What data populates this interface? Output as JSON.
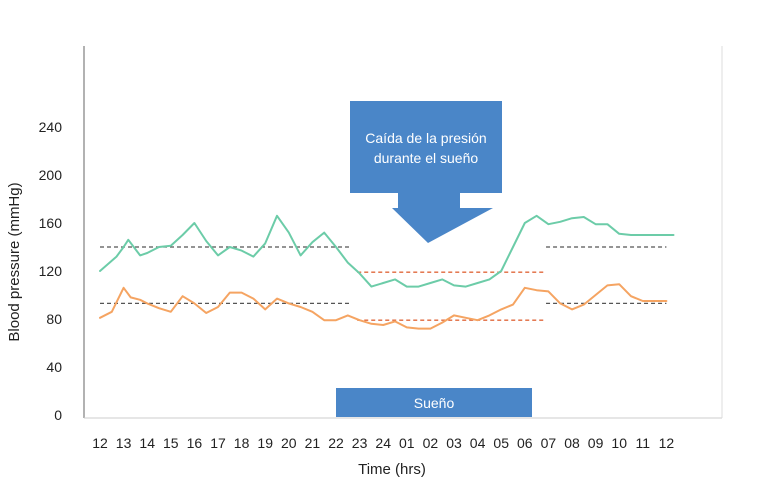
{
  "chart_data": {
    "type": "line",
    "title": "",
    "xlabel": "Time (hrs)",
    "ylabel": "Blood pressure (mmHg)",
    "ylim": [
      0,
      280
    ],
    "yticks": [
      0,
      40,
      80,
      120,
      160,
      200,
      240
    ],
    "ytick_labels": [
      "0",
      "40",
      "80",
      "120",
      "160",
      "200",
      "240"
    ],
    "xtick_labels": [
      "12",
      "13",
      "14",
      "15",
      "16",
      "17",
      "18",
      "19",
      "20",
      "21",
      "22",
      "23",
      "24",
      "01",
      "02",
      "03",
      "04",
      "05",
      "06",
      "07",
      "08",
      "09",
      "10",
      "11",
      "12"
    ],
    "grid": false,
    "legend": "none",
    "series": [
      {
        "color": "#6ccca8",
        "x": [
          0,
          0.7,
          1,
          1.2,
          1.7,
          2,
          2.5,
          3,
          3.5,
          4,
          4.5,
          5,
          5.5,
          6,
          6.5,
          7,
          7.5,
          8,
          8.5,
          9,
          9.5,
          10,
          10.5,
          11,
          11.5,
          12,
          12.5,
          13,
          13.5,
          14,
          14.5,
          15,
          15.5,
          16,
          16.5,
          17,
          17.5,
          18,
          18.5,
          19,
          19.5,
          20,
          20.5,
          21,
          21.5,
          22,
          22.5,
          23,
          23.5,
          24,
          24.3
        ],
        "values": [
          120,
          132,
          140,
          146,
          133,
          135,
          140,
          141,
          150,
          160,
          145,
          133,
          140,
          137,
          132,
          143,
          166,
          152,
          133,
          144,
          152,
          140,
          127,
          118,
          107,
          110,
          113,
          107,
          107,
          110,
          113,
          108,
          107,
          110,
          113,
          120,
          140,
          160,
          166,
          159,
          161,
          164,
          165,
          159,
          159,
          151,
          150,
          150,
          150,
          150,
          150
        ]
      },
      {
        "color": "#f5a462",
        "x": [
          0,
          0.5,
          1,
          1.3,
          1.7,
          2,
          2.5,
          3,
          3.5,
          4,
          4.5,
          5,
          5.5,
          6,
          6.5,
          7,
          7.5,
          8,
          8.5,
          9,
          9.5,
          10,
          10.5,
          11,
          11.5,
          12,
          12.5,
          13,
          13.5,
          14,
          14.5,
          15,
          15.5,
          16,
          16.5,
          17,
          17.5,
          18,
          18.5,
          19,
          19.5,
          20,
          20.5,
          21,
          21.5,
          22,
          22.5,
          23,
          23.5,
          24
        ],
        "values": [
          81,
          86,
          106,
          98,
          96,
          93,
          89,
          86,
          99,
          93,
          85,
          90,
          102,
          102,
          97,
          88,
          97,
          93,
          90,
          86,
          79,
          79,
          83,
          79,
          76,
          75,
          78,
          73,
          72,
          72,
          77,
          83,
          81,
          79,
          83,
          88,
          92,
          106,
          104,
          103,
          93,
          88,
          92,
          100,
          108,
          109,
          99,
          95,
          95,
          95
        ]
      }
    ],
    "reference_lines": [
      {
        "color": "#555555",
        "from": 0,
        "to": 10.6,
        "value": 140
      },
      {
        "color": "#555555",
        "from": 0,
        "to": 10.6,
        "value": 93
      },
      {
        "color": "#e0673b",
        "from": 10.9,
        "to": 18.9,
        "value": 119
      },
      {
        "color": "#e0673b",
        "from": 10.9,
        "to": 18.9,
        "value": 79
      },
      {
        "color": "#555555",
        "from": 18.9,
        "to": 24.0,
        "value": 140
      },
      {
        "color": "#555555",
        "from": 18.9,
        "to": 24.0,
        "value": 93
      }
    ]
  },
  "annotations": {
    "callout_line1": "Caída de la presión",
    "callout_line2": "durante el sueño",
    "sleep_label": "Sueño",
    "accent_color": "#4a86c8"
  }
}
